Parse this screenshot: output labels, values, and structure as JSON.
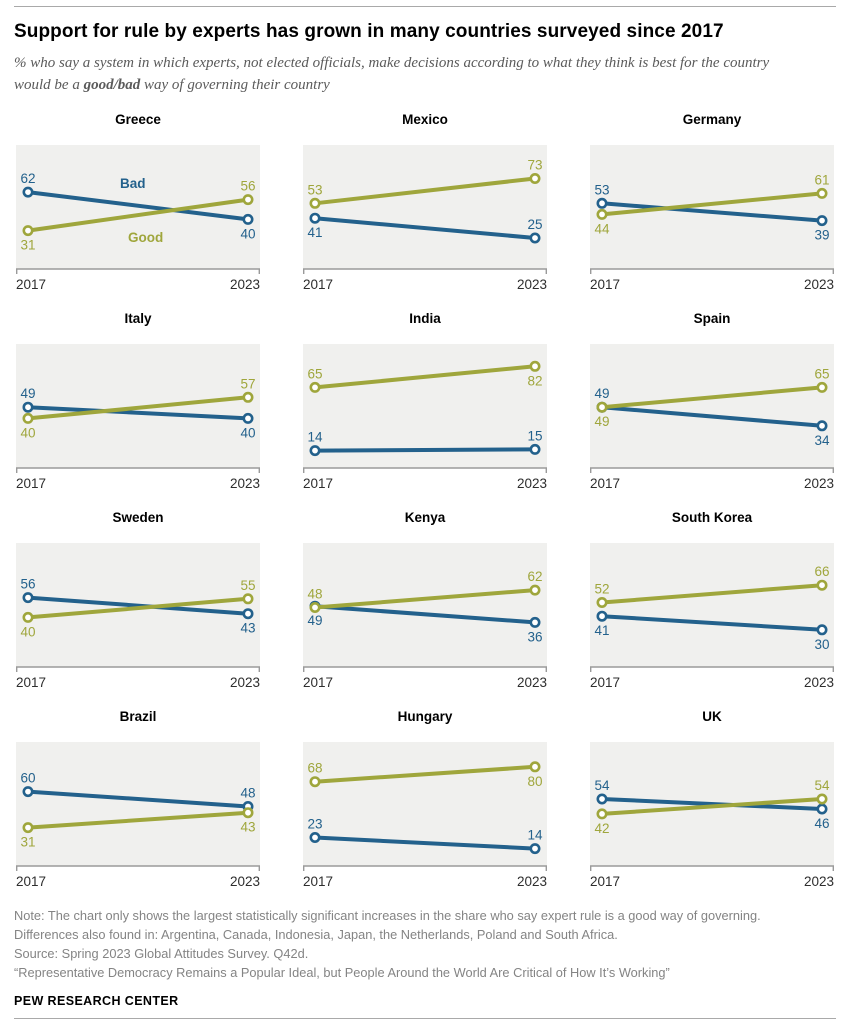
{
  "header": {
    "title": "Support for rule by experts has grown in many countries surveyed since 2017",
    "subtitle_prefix": "% who say a system in which experts, not elected officials, make decisions according to what they think is best for the country would be a ",
    "subtitle_bold": "good/bad",
    "subtitle_suffix": " way of governing their country"
  },
  "chart_data": {
    "type": "line",
    "variant": "slope-small-multiples",
    "x_labels": [
      "2017",
      "2023"
    ],
    "ylim": [
      0,
      100
    ],
    "grid": false,
    "series": {
      "bad_label": "Bad",
      "good_label": "Good"
    },
    "colors": {
      "bad": "#23618c",
      "good": "#9fa63c",
      "plot_bg": "#f0f0ee",
      "axis": "#9a9a9a"
    },
    "panels": [
      {
        "country": "Greece",
        "bad": [
          62,
          40
        ],
        "good": [
          31,
          56
        ],
        "bad_pos": [
          "above",
          "below"
        ],
        "good_pos": [
          "below",
          "above"
        ],
        "show_series_labels": true
      },
      {
        "country": "Mexico",
        "bad": [
          41,
          25
        ],
        "good": [
          53,
          73
        ],
        "bad_pos": [
          "below",
          "above"
        ],
        "good_pos": [
          "above",
          "above"
        ]
      },
      {
        "country": "Germany",
        "bad": [
          53,
          39
        ],
        "good": [
          44,
          61
        ],
        "bad_pos": [
          "above",
          "below"
        ],
        "good_pos": [
          "below",
          "above"
        ]
      },
      {
        "country": "Italy",
        "bad": [
          49,
          40
        ],
        "good": [
          40,
          57
        ],
        "bad_pos": [
          "above",
          "below"
        ],
        "good_pos": [
          "below",
          "above"
        ]
      },
      {
        "country": "India",
        "bad": [
          14,
          15
        ],
        "good": [
          65,
          82
        ],
        "bad_pos": [
          "above",
          "above"
        ],
        "good_pos": [
          "above",
          "below"
        ]
      },
      {
        "country": "Spain",
        "bad": [
          49,
          34
        ],
        "good": [
          49,
          65
        ],
        "bad_pos": [
          "above",
          "below"
        ],
        "good_pos": [
          "below",
          "above"
        ]
      },
      {
        "country": "Sweden",
        "bad": [
          56,
          43
        ],
        "good": [
          40,
          55
        ],
        "bad_pos": [
          "above",
          "below"
        ],
        "good_pos": [
          "below",
          "above"
        ]
      },
      {
        "country": "Kenya",
        "bad": [
          49,
          36
        ],
        "good": [
          48,
          62
        ],
        "bad_pos": [
          "below",
          "below"
        ],
        "good_pos": [
          "above",
          "above"
        ]
      },
      {
        "country": "South Korea",
        "bad": [
          41,
          30
        ],
        "good": [
          52,
          66
        ],
        "bad_pos": [
          "below",
          "below"
        ],
        "good_pos": [
          "above",
          "above"
        ]
      },
      {
        "country": "Brazil",
        "bad": [
          60,
          48
        ],
        "good": [
          31,
          43
        ],
        "bad_pos": [
          "above",
          "above"
        ],
        "good_pos": [
          "below",
          "below"
        ]
      },
      {
        "country": "Hungary",
        "bad": [
          23,
          14
        ],
        "good": [
          68,
          80
        ],
        "bad_pos": [
          "above",
          "above"
        ],
        "good_pos": [
          "above",
          "below"
        ]
      },
      {
        "country": "UK",
        "bad": [
          54,
          46
        ],
        "good": [
          42,
          54
        ],
        "bad_pos": [
          "above",
          "below"
        ],
        "good_pos": [
          "below",
          "above"
        ]
      }
    ]
  },
  "footer": {
    "note1": "Note: The chart only shows the largest statistically significant increases in the share who say expert rule is a good way of governing.",
    "note2": "Differences also found in: Argentina, Canada, Indonesia, Japan, the Netherlands, Poland and South Africa.",
    "source": "Source: Spring 2023 Global Attitudes Survey. Q42d.",
    "quote": "“Representative Democracy Remains a Popular Ideal, but People Around the World Are Critical of How It’s Working”",
    "brand": "PEW RESEARCH CENTER"
  }
}
